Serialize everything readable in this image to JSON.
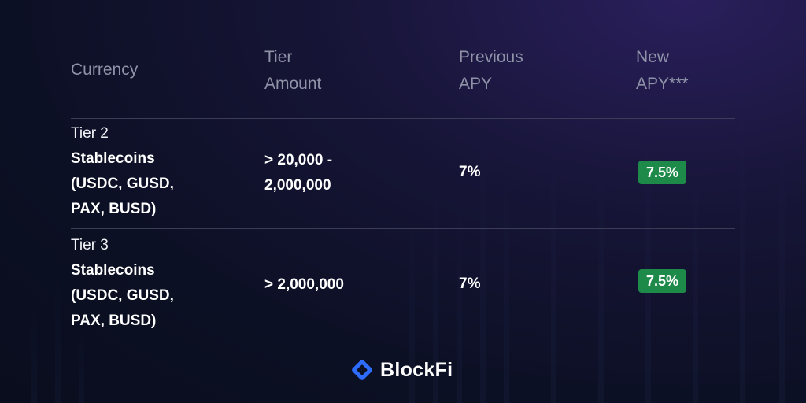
{
  "header": {
    "currency": "Currency",
    "tier_amount": [
      "Tier",
      "Amount"
    ],
    "previous_apy": [
      "Previous",
      "APY"
    ],
    "new_apy": [
      "New",
      "APY***"
    ]
  },
  "rows": [
    {
      "tier": "Tier 2",
      "currency": [
        "Stablecoins",
        "(USDC, GUSD,",
        "PAX, BUSD)"
      ],
      "amount": [
        "> 20,000 -",
        "2,000,000"
      ],
      "previous_apy": "7%",
      "new_apy": "7.5%"
    },
    {
      "tier": "Tier 3",
      "currency": [
        "Stablecoins",
        "(USDC, GUSD,",
        "PAX, BUSD)"
      ],
      "amount": [
        "> 2,000,000"
      ],
      "previous_apy": "7%",
      "new_apy": "7.5%"
    }
  ],
  "brand": {
    "name": "BlockFi",
    "icon": "blockfi-logo-icon",
    "accent": "#2e6bff"
  },
  "colors": {
    "badge": "#1e8a4a",
    "muted_text": "#8f93a8"
  }
}
